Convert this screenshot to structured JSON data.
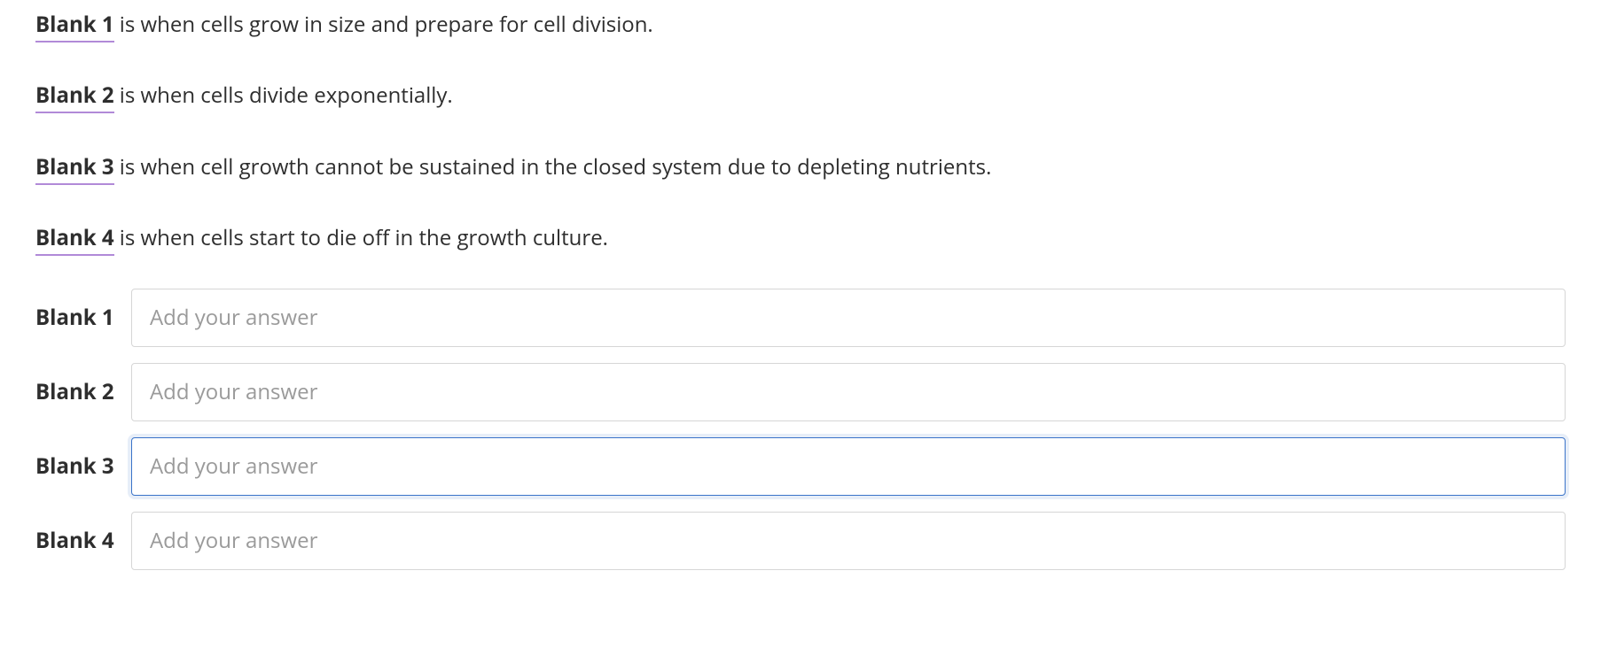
{
  "prompts": [
    {
      "blank_label": "Blank 1",
      "text": " is when cells grow in size and prepare for cell division."
    },
    {
      "blank_label": "Blank 2",
      "text": " is when cells divide exponentially."
    },
    {
      "blank_label": "Blank 3",
      "text": " is when cell growth cannot be sustained in the closed system due to depleting nutrients."
    },
    {
      "blank_label": "Blank 4",
      "text": " is when cells start to die off in the growth culture."
    }
  ],
  "answers": [
    {
      "label": "Blank 1",
      "placeholder": "Add your answer",
      "value": "",
      "focused": false
    },
    {
      "label": "Blank 2",
      "placeholder": "Add your answer",
      "value": "",
      "focused": false
    },
    {
      "label": "Blank 3",
      "placeholder": "Add your answer",
      "value": "",
      "focused": true
    },
    {
      "label": "Blank 4",
      "placeholder": "Add your answer",
      "value": "",
      "focused": false
    }
  ],
  "styles": {
    "text_color": "#2e2e2e",
    "placeholder_color": "#9a9a9a",
    "underline_color": "#b18ad8",
    "input_border_color": "#d6d6d6",
    "input_focus_border_color": "#3a73c9",
    "input_focus_ring_color": "rgba(58,115,201,0.12)",
    "background_color": "#ffffff",
    "prompt_fontsize": 24,
    "label_fontsize": 24,
    "input_fontsize": 24,
    "input_height": 66,
    "input_border_radius": 4
  }
}
